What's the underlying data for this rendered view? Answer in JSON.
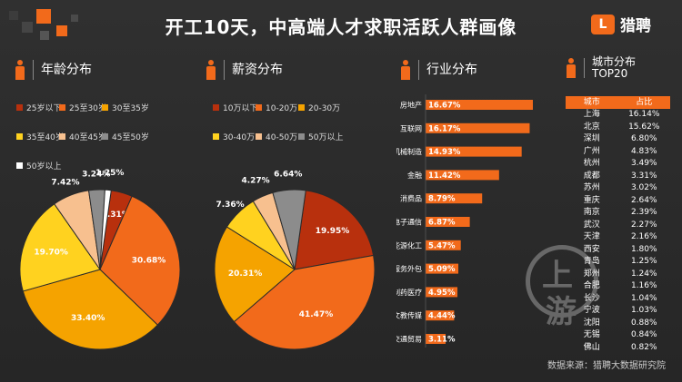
{
  "title": "开工10天，中高端人才求职活跃人群画像",
  "logo_text": "猎聘",
  "logo_mark": "L",
  "source": "数据来源：猎聘大数据研究院",
  "watermark_char1": "上",
  "watermark_char2": "游",
  "colors": {
    "accent": "#f26a1b",
    "dark_red": "#b8300d",
    "orange": "#f26a1b",
    "amber": "#f5a300",
    "yellow": "#ffd21f",
    "peach": "#f7c08f",
    "gray": "#8c8c8c",
    "white": "#ffffff"
  },
  "sections": {
    "age": "年龄分布",
    "salary": "薪资分布",
    "industry": "行业分布",
    "city": "城市分布\nTOP20"
  },
  "chart_data": [
    {
      "type": "pie",
      "title": "年龄分布",
      "categories": [
        "25岁以下",
        "25至30岁",
        "30至35岁",
        "35至40岁",
        "40至45岁",
        "45至50岁",
        "50岁以上"
      ],
      "values": [
        4.31,
        30.68,
        33.4,
        19.7,
        7.42,
        3.24,
        1.25
      ],
      "labels": [
        "4.31%",
        "30.68%",
        "33.40%",
        "19.70%",
        "7.42%",
        "3.24%",
        "1.25%"
      ],
      "colors": [
        "#b8300d",
        "#f26a1b",
        "#f5a300",
        "#ffd21f",
        "#f7c08f",
        "#8c8c8c",
        "#ffffff"
      ]
    },
    {
      "type": "pie",
      "title": "薪资分布",
      "categories": [
        "10万以下",
        "10-20万",
        "20-30万",
        "30-40万",
        "40-50万",
        "50万以上"
      ],
      "values": [
        19.95,
        41.47,
        20.31,
        7.36,
        4.27,
        6.64
      ],
      "labels": [
        "19.95%",
        "41.47%",
        "20.31%",
        "7.36%",
        "4.27%",
        "6.64%"
      ],
      "colors": [
        "#b8300d",
        "#f26a1b",
        "#f5a300",
        "#ffd21f",
        "#f7c08f",
        "#8c8c8c"
      ]
    },
    {
      "type": "bar",
      "title": "行业分布",
      "categories": [
        "房地产",
        "互联网",
        "机械制造",
        "金融",
        "消费品",
        "电子通信",
        "能源化工",
        "服务外包",
        "制药医疗",
        "文教传媒",
        "交通贸易"
      ],
      "values": [
        16.67,
        16.17,
        14.93,
        11.42,
        8.79,
        6.87,
        5.47,
        5.09,
        4.95,
        4.44,
        3.11
      ],
      "labels": [
        "16.67%",
        "16.17%",
        "14.93%",
        "11.42%",
        "8.79%",
        "6.87%",
        "5.47%",
        "5.09%",
        "4.95%",
        "4.44%",
        "3.11%"
      ]
    },
    {
      "type": "table",
      "title": "城市分布TOP20",
      "columns": [
        "城市",
        "占比"
      ],
      "rows": [
        [
          "上海",
          "16.14%"
        ],
        [
          "北京",
          "15.62%"
        ],
        [
          "深圳",
          "6.80%"
        ],
        [
          "广州",
          "4.83%"
        ],
        [
          "杭州",
          "3.49%"
        ],
        [
          "成都",
          "3.31%"
        ],
        [
          "苏州",
          "3.02%"
        ],
        [
          "重庆",
          "2.64%"
        ],
        [
          "南京",
          "2.39%"
        ],
        [
          "武汉",
          "2.27%"
        ],
        [
          "天津",
          "2.16%"
        ],
        [
          "西安",
          "1.80%"
        ],
        [
          "青岛",
          "1.25%"
        ],
        [
          "郑州",
          "1.24%"
        ],
        [
          "合肥",
          "1.16%"
        ],
        [
          "长沙",
          "1.04%"
        ],
        [
          "宁波",
          "1.03%"
        ],
        [
          "沈阳",
          "0.88%"
        ],
        [
          "无锡",
          "0.84%"
        ],
        [
          "佛山",
          "0.82%"
        ]
      ]
    }
  ]
}
